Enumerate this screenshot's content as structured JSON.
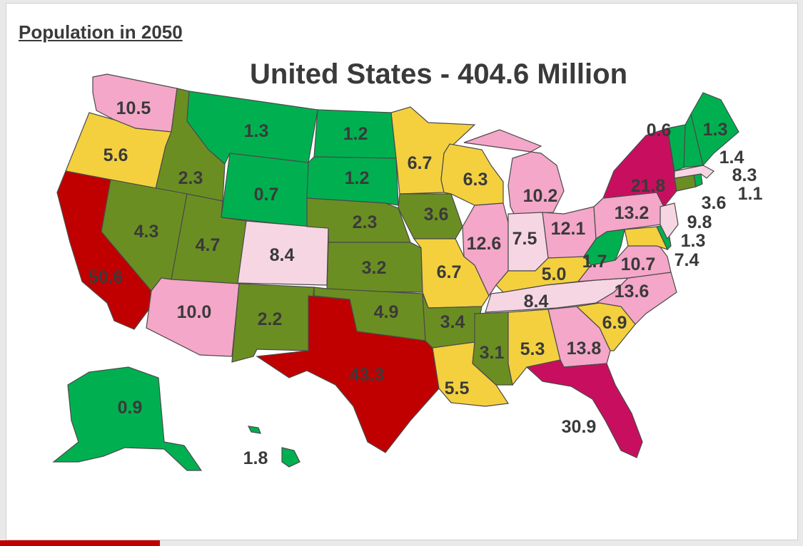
{
  "heading": "Population in 2050",
  "title": "United States - 404.6 Million",
  "colors": {
    "dark_green": "#00b050",
    "olive": "#6b8e23",
    "yellow": "#f4d03f",
    "light_pink": "#f7d6e3",
    "pink": "#f4a7c8",
    "magenta": "#c80f5f",
    "red": "#c00000",
    "accent_bar": "#c00000"
  },
  "states": {
    "wa": {
      "value": "10.5"
    },
    "or": {
      "value": "5.6"
    },
    "ca": {
      "value": "50.6"
    },
    "id": {
      "value": "2.3"
    },
    "nv": {
      "value": "4.3"
    },
    "mt": {
      "value": "1.3"
    },
    "wy": {
      "value": "0.7"
    },
    "ut": {
      "value": "4.7"
    },
    "co": {
      "value": "8.4"
    },
    "az": {
      "value": "10.0"
    },
    "nm": {
      "value": "2.2"
    },
    "nd": {
      "value": "1.2"
    },
    "sd": {
      "value": "1.2"
    },
    "ne": {
      "value": "2.3"
    },
    "ks": {
      "value": "3.2"
    },
    "ok": {
      "value": "4.9"
    },
    "tx": {
      "value": "43.3"
    },
    "mn": {
      "value": "6.7"
    },
    "ia": {
      "value": "3.6"
    },
    "mo": {
      "value": "6.7"
    },
    "ar": {
      "value": "3.4"
    },
    "la": {
      "value": "5.5"
    },
    "wi": {
      "value": "6.3"
    },
    "il": {
      "value": "12.6"
    },
    "ms": {
      "value": "3.1"
    },
    "mi": {
      "value": "10.2"
    },
    "in": {
      "value": "7.5"
    },
    "ky": {
      "value": "5.0"
    },
    "tn": {
      "value": "8.4"
    },
    "al": {
      "value": "5.3"
    },
    "oh": {
      "value": "12.1"
    },
    "ga": {
      "value": "13.8"
    },
    "fl": {
      "value": "30.9"
    },
    "sc": {
      "value": "6.9"
    },
    "nc": {
      "value": "13.6"
    },
    "va": {
      "value": "10.7"
    },
    "wv": {
      "value": "1.7"
    },
    "pa": {
      "value": "13.2"
    },
    "ny": {
      "value": "21.8"
    },
    "vt": {
      "value": "0.6"
    },
    "me": {
      "value": "1.3"
    },
    "nh": {
      "value": "1.4"
    },
    "ma": {
      "value": "8.3"
    },
    "ri": {
      "value": "1.1"
    },
    "ct": {
      "value": "3.6"
    },
    "nj": {
      "value": "9.8"
    },
    "de": {
      "value": "1.3"
    },
    "md": {
      "value": "7.4"
    },
    "ak": {
      "value": "0.9"
    },
    "hi": {
      "value": "1.8"
    }
  }
}
